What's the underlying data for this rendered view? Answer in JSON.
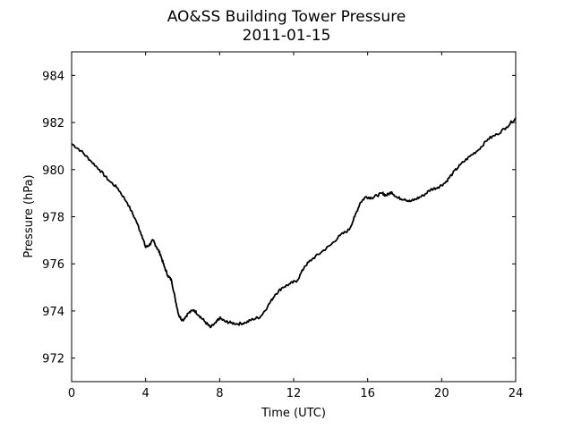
{
  "chart_data": {
    "type": "line",
    "title": "AO&SS Building Tower Pressure",
    "subtitle": "2011-01-15",
    "xlabel": "Time (UTC)",
    "ylabel": "Pressure (hPa)",
    "xlim": [
      0,
      24
    ],
    "ylim": [
      971,
      985
    ],
    "xticks": [
      0,
      4,
      8,
      12,
      16,
      20,
      24
    ],
    "yticks": [
      972,
      974,
      976,
      978,
      980,
      982,
      984
    ],
    "grid": false,
    "line_color": "#000000",
    "series": [
      {
        "x": [
          0,
          0.5,
          1,
          1.5,
          2,
          2.5,
          3,
          3.5,
          3.8,
          4,
          4.2,
          4.4,
          4.6,
          4.8,
          5,
          5.2,
          5.4,
          5.6,
          5.8,
          6,
          6.3,
          6.6,
          6.9,
          7.2,
          7.5,
          7.8,
          8,
          8.3,
          8.6,
          9,
          9.4,
          9.8,
          10.2,
          10.6,
          11,
          11.4,
          11.8,
          12.2,
          12.6,
          13,
          13.5,
          14,
          14.5,
          15,
          15.3,
          15.6,
          15.9,
          16.2,
          16.5,
          16.8,
          17,
          17.3,
          17.6,
          18,
          18.3,
          18.6,
          19,
          19.4,
          19.8,
          20.2,
          20.6,
          21,
          21.5,
          22,
          22.5,
          23,
          23.5,
          24
        ],
        "y": [
          981.1,
          980.8,
          980.4,
          980,
          979.55,
          979.2,
          978.6,
          977.8,
          977.2,
          976.7,
          976.8,
          977,
          976.7,
          976.4,
          975.9,
          975.5,
          975.3,
          974.5,
          973.8,
          973.6,
          973.9,
          974.05,
          973.8,
          973.55,
          973.3,
          973.5,
          973.7,
          973.55,
          973.5,
          973.45,
          973.5,
          973.65,
          973.75,
          974.2,
          974.7,
          975,
          975.15,
          975.3,
          975.9,
          976.2,
          976.5,
          976.8,
          977.2,
          977.45,
          978,
          978.6,
          978.85,
          978.8,
          978.9,
          979,
          978.9,
          979.05,
          978.8,
          978.75,
          978.65,
          978.75,
          978.9,
          979.15,
          979.25,
          979.45,
          979.85,
          980.2,
          980.55,
          980.85,
          981.3,
          981.5,
          981.8,
          982.2
        ]
      }
    ]
  }
}
